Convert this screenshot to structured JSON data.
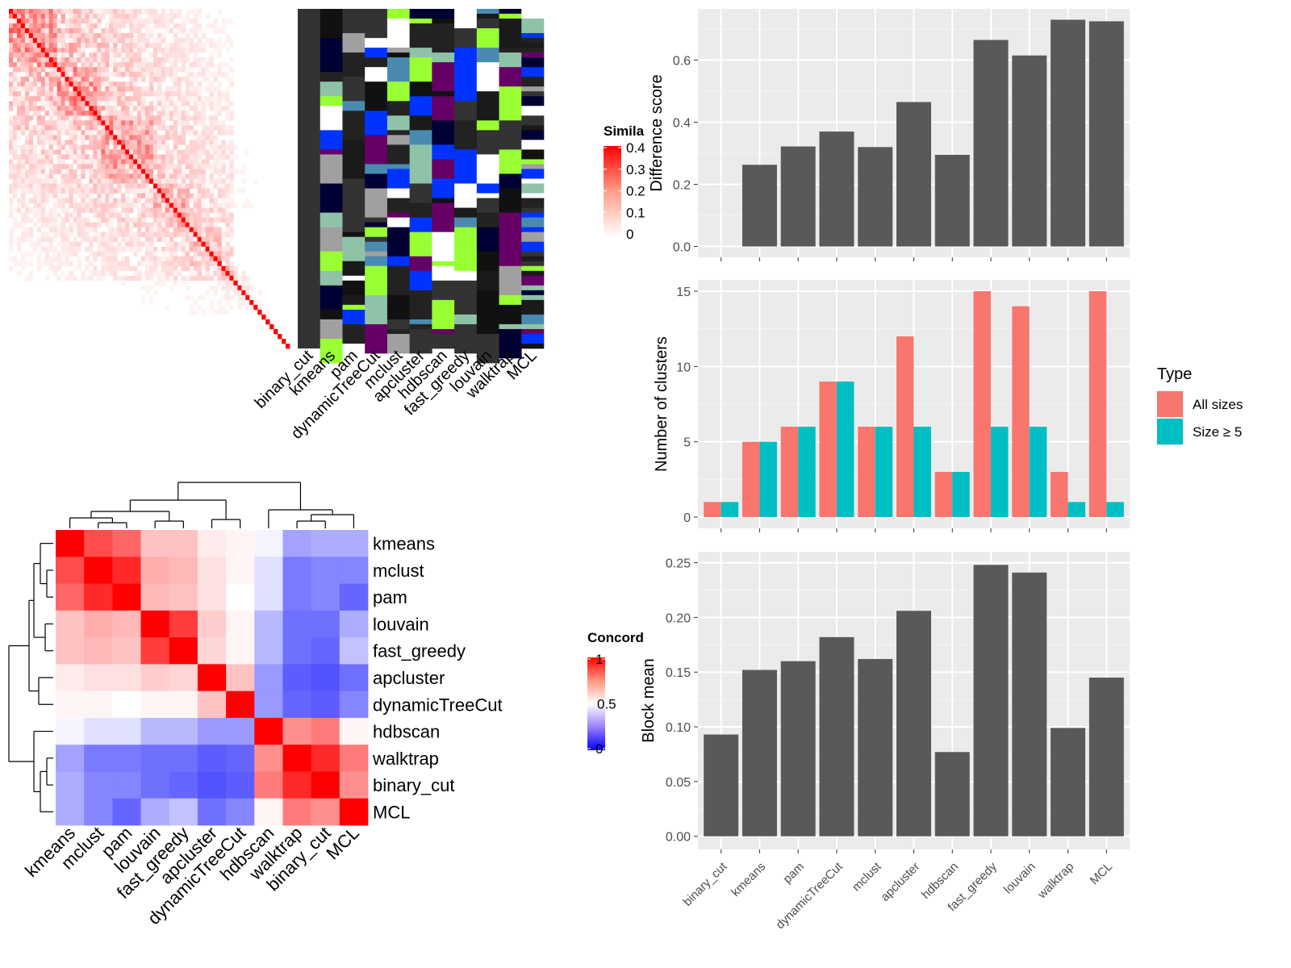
{
  "chart_data": [
    {
      "id": "similarity_heatmap",
      "type": "heatmap",
      "note_values": "dense co-clustering similarity matrix; values range 0 to 0.4",
      "legend": {
        "title": "Simila",
        "ticks": [
          "0.4",
          "0.3",
          "0.2",
          "0.1",
          "0"
        ],
        "range": [
          0,
          0.4
        ]
      },
      "colors": {
        "low": "#ffffff",
        "high": "#ff0000"
      }
    },
    {
      "id": "cluster_assignment_heatmap",
      "type": "heatmap",
      "columns": [
        "binary_cut",
        "kmeans",
        "pam",
        "dynamicTreeCut",
        "mclust",
        "apcluster",
        "hdbscan",
        "fast_greedy",
        "louvain",
        "walktrap",
        "MCL"
      ],
      "palette": [
        "#333333",
        "#111111",
        "#1a1a1a",
        "#0033ff",
        "#99ff33",
        "#660066",
        "#ffffff",
        "#000033",
        "#4a8ab0",
        "#8fc3a8",
        "#a0a0a0",
        "#222222"
      ]
    },
    {
      "id": "concordance_heatmap",
      "type": "heatmap",
      "rows": [
        "kmeans",
        "mclust",
        "pam",
        "louvain",
        "fast_greedy",
        "apcluster",
        "dynamicTreeCut",
        "hdbscan",
        "walktrap",
        "binary_cut",
        "MCL"
      ],
      "columns": [
        "kmeans",
        "mclust",
        "pam",
        "louvain",
        "fast_greedy",
        "apcluster",
        "dynamicTreeCut",
        "hdbscan",
        "walktrap",
        "binary_cut",
        "MCL"
      ],
      "values": [
        [
          1.0,
          0.85,
          0.8,
          0.62,
          0.62,
          0.54,
          0.52,
          0.48,
          0.32,
          0.34,
          0.34
        ],
        [
          0.85,
          1.0,
          0.92,
          0.66,
          0.64,
          0.56,
          0.52,
          0.44,
          0.24,
          0.26,
          0.26
        ],
        [
          0.8,
          0.92,
          1.0,
          0.64,
          0.62,
          0.56,
          0.5,
          0.44,
          0.24,
          0.26,
          0.2
        ],
        [
          0.62,
          0.66,
          0.64,
          1.0,
          0.88,
          0.6,
          0.52,
          0.36,
          0.22,
          0.22,
          0.34
        ],
        [
          0.62,
          0.64,
          0.62,
          0.88,
          1.0,
          0.58,
          0.52,
          0.36,
          0.22,
          0.2,
          0.38
        ],
        [
          0.54,
          0.56,
          0.56,
          0.6,
          0.58,
          1.0,
          0.62,
          0.3,
          0.18,
          0.16,
          0.22
        ],
        [
          0.52,
          0.52,
          0.5,
          0.52,
          0.52,
          0.62,
          1.0,
          0.3,
          0.2,
          0.18,
          0.26
        ],
        [
          0.48,
          0.44,
          0.44,
          0.36,
          0.36,
          0.3,
          0.3,
          1.0,
          0.72,
          0.76,
          0.52
        ],
        [
          0.32,
          0.24,
          0.24,
          0.22,
          0.22,
          0.18,
          0.2,
          0.72,
          1.0,
          0.92,
          0.76
        ],
        [
          0.34,
          0.26,
          0.26,
          0.22,
          0.2,
          0.16,
          0.18,
          0.76,
          0.92,
          1.0,
          0.72
        ],
        [
          0.34,
          0.26,
          0.2,
          0.34,
          0.38,
          0.22,
          0.26,
          0.52,
          0.76,
          0.72,
          1.0
        ]
      ],
      "legend": {
        "title": "Concord",
        "ticks": [
          "1",
          "0.5",
          "0"
        ],
        "range": [
          0,
          1
        ]
      },
      "colors": {
        "low": "#0000ff",
        "mid": "#ffffff",
        "high": "#ff0000"
      }
    },
    {
      "id": "difference_score",
      "type": "bar",
      "categories": [
        "binary_cut",
        "kmeans",
        "pam",
        "dynamicTreeCut",
        "mclust",
        "apcluster",
        "hdbscan",
        "fast_greedy",
        "louvain",
        "walktrap",
        "MCL"
      ],
      "values": [
        0.0,
        0.263,
        0.322,
        0.37,
        0.32,
        0.465,
        0.295,
        0.665,
        0.615,
        0.73,
        0.725
      ],
      "ylabel": "Difference score",
      "ylim": [
        -0.035,
        0.765
      ],
      "yticks": [
        "0.0",
        "0.2",
        "0.4",
        "0.6"
      ],
      "ytick_values": [
        0,
        0.2,
        0.4,
        0.6
      ],
      "bar_color": "#595959"
    },
    {
      "id": "number_of_clusters",
      "type": "bar",
      "categories": [
        "binary_cut",
        "kmeans",
        "pam",
        "dynamicTreeCut",
        "mclust",
        "apcluster",
        "hdbscan",
        "fast_greedy",
        "louvain",
        "walktrap",
        "MCL"
      ],
      "series": [
        {
          "name": "All sizes",
          "values": [
            1,
            5,
            6,
            9,
            6,
            12,
            3,
            15,
            14,
            3,
            15
          ]
        },
        {
          "name": "Size ≥ 5",
          "values": [
            1,
            5,
            6,
            9,
            6,
            6,
            3,
            6,
            6,
            1,
            1
          ]
        }
      ],
      "ylabel": "Number of clusters",
      "ylim": [
        -0.75,
        15.75
      ],
      "yticks": [
        "0",
        "5",
        "10",
        "15"
      ],
      "ytick_values": [
        0,
        5,
        10,
        15
      ],
      "legend": {
        "title": "Type",
        "position": "right"
      },
      "series_colors": [
        "#f8766d",
        "#00bfc4"
      ]
    },
    {
      "id": "block_mean",
      "type": "bar",
      "categories": [
        "binary_cut",
        "kmeans",
        "pam",
        "dynamicTreeCut",
        "mclust",
        "apcluster",
        "hdbscan",
        "fast_greedy",
        "louvain",
        "walktrap",
        "MCL"
      ],
      "values": [
        0.093,
        0.152,
        0.16,
        0.182,
        0.162,
        0.206,
        0.077,
        0.248,
        0.241,
        0.099,
        0.145
      ],
      "ylabel": "Block mean",
      "ylim": [
        -0.012,
        0.26
      ],
      "yticks": [
        "0.00",
        "0.05",
        "0.10",
        "0.15",
        "0.20",
        "0.25"
      ],
      "ytick_values": [
        0,
        0.05,
        0.1,
        0.15,
        0.2,
        0.25
      ],
      "bar_color": "#595959"
    }
  ]
}
